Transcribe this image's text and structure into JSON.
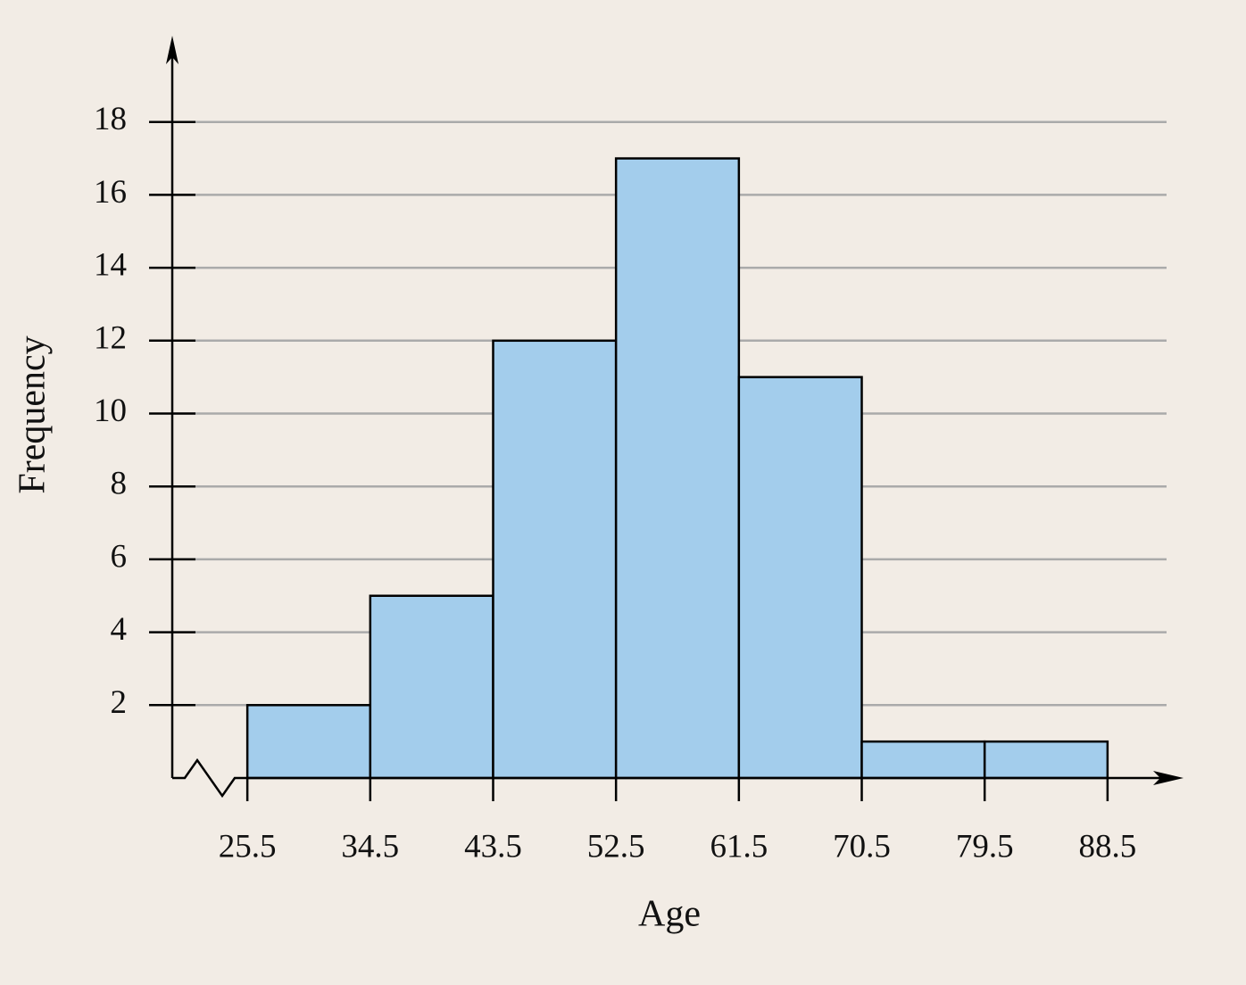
{
  "chart_data": {
    "type": "histogram",
    "x_label": "Age",
    "y_label": "Frequency",
    "bins": [
      25.5,
      34.5,
      43.5,
      52.5,
      61.5,
      70.5,
      79.5,
      88.5
    ],
    "values": [
      2,
      5,
      12,
      17,
      11,
      1,
      1
    ],
    "color": "#a3cdec",
    "xlim": [
      20,
      94
    ],
    "xticks": [
      25.5,
      34.5,
      43.5,
      52.5,
      61.5,
      70.5,
      79.5,
      88.5
    ],
    "ylim": [
      0,
      20
    ],
    "yticks": [
      2,
      4,
      6,
      8,
      10,
      12,
      14,
      16,
      18
    ],
    "grid": true
  }
}
